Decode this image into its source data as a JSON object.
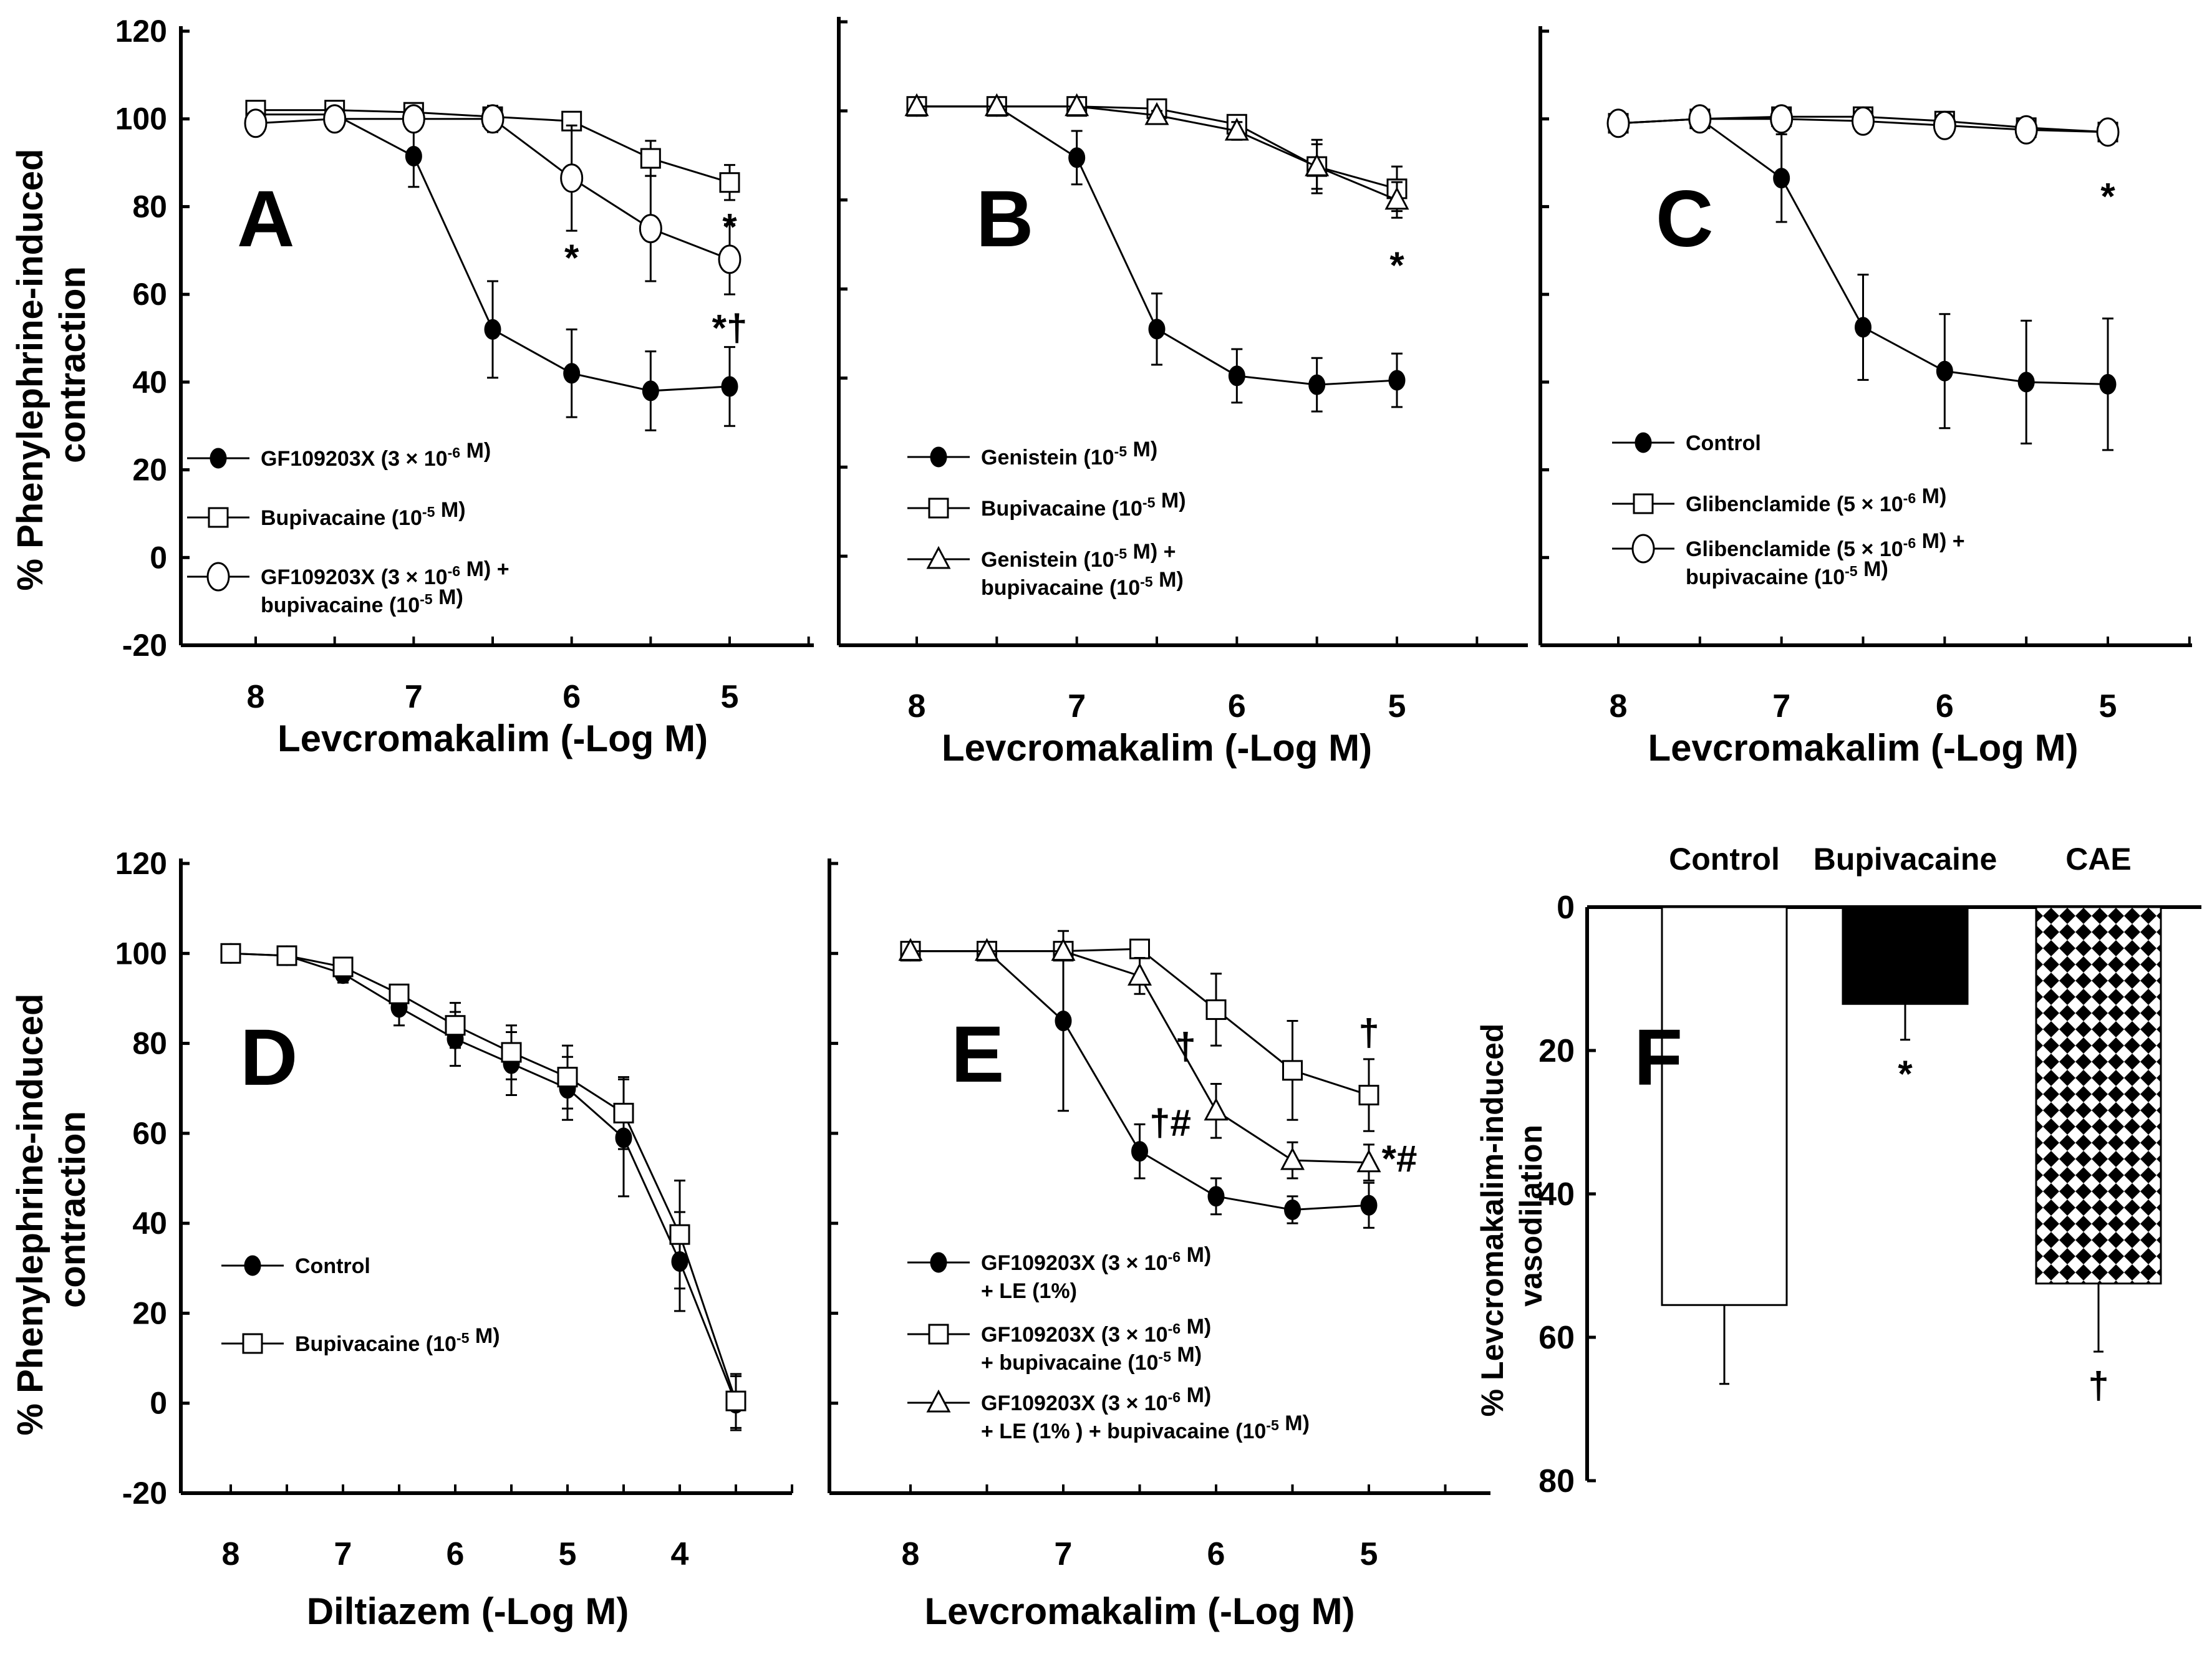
{
  "figure": {
    "y_axis_label_top": "% Phenylephrine-induced contraction",
    "y_axis_label_top_lines": [
      "% Phenylephrine-induced",
      "contraction"
    ],
    "y_axis_label_f_lines": [
      "% Levcromakalim-induced",
      "vasodilation"
    ]
  },
  "chart_data": [
    {
      "panel": "A",
      "type": "line",
      "xlabel": "Levcromakalim (-Log M)",
      "ylabel": "% Phenylephrine-induced contraction",
      "xlim": [
        8.5,
        4.5
      ],
      "ylim": [
        -20,
        120
      ],
      "xticks": [
        8,
        7,
        6,
        5
      ],
      "yticks": [
        -20,
        0,
        20,
        40,
        60,
        80,
        100,
        120
      ],
      "ytick_labels_visible": true,
      "x": [
        8,
        7.5,
        7,
        6.5,
        6,
        5.5,
        5
      ],
      "series": [
        {
          "name": "GF109203X (3 × 10-6 M)",
          "marker": "filled-circle",
          "values": [
            101,
            101,
            91.5,
            52,
            42,
            38,
            39
          ],
          "errors": [
            0,
            0,
            7,
            11,
            10,
            9,
            9
          ]
        },
        {
          "name": "Bupivacaine (10-5 M)",
          "marker": "open-square",
          "values": [
            102,
            102,
            101.5,
            100.5,
            99.5,
            91,
            85.5
          ],
          "errors": [
            0,
            0,
            0,
            2,
            2,
            4,
            4
          ]
        },
        {
          "name": "GF109203X (3 × 10-6 M) + bupivacaine (10-5 M)",
          "marker": "open-circle",
          "values": [
            99,
            100,
            100,
            100,
            86.5,
            75,
            68
          ],
          "errors": [
            0,
            0,
            0,
            3,
            12,
            12,
            8
          ]
        }
      ],
      "legend": [
        {
          "marker": "filled-circle",
          "lines": [
            "GF109203X  (3 × 10-6 M)"
          ]
        },
        {
          "marker": "open-square",
          "lines": [
            "Bupivacaine  (10-5 M)"
          ]
        },
        {
          "marker": "open-circle",
          "lines": [
            "GF109203X  (3  × 10-6 M) +",
            "bupivacaine  (10-5 M)"
          ]
        }
      ],
      "annotations": [
        {
          "text": "A",
          "role": "panel-letter"
        },
        {
          "text": "*",
          "x": 6,
          "y": 68
        },
        {
          "text": "*",
          "x": 5,
          "y": 75
        },
        {
          "text": "*†",
          "x": 5,
          "y": 52
        }
      ]
    },
    {
      "panel": "B",
      "type": "line",
      "xlabel": "Levcromakalim (-Log M)",
      "ylabel": "",
      "xlim": [
        8.5,
        4.5
      ],
      "ylim": [
        -20,
        120
      ],
      "xticks": [
        8,
        7,
        6,
        5
      ],
      "yticks": [
        -20,
        0,
        20,
        40,
        60,
        80,
        100,
        120
      ],
      "ytick_labels_visible": false,
      "x": [
        8,
        7.5,
        7,
        6.5,
        6,
        5.5,
        5
      ],
      "series": [
        {
          "name": "Genistein (10-5 M)",
          "marker": "filled-circle",
          "values": [
            101,
            101,
            89.5,
            51,
            40.5,
            38.5,
            39.5
          ],
          "errors": [
            0,
            0,
            6,
            8,
            6,
            6,
            6
          ]
        },
        {
          "name": "Bupivacaine (10-5 M)",
          "marker": "open-square",
          "values": [
            101,
            101,
            101,
            100.5,
            97,
            87.5,
            82.5
          ],
          "errors": [
            0,
            0,
            0,
            1,
            2,
            5,
            5
          ]
        },
        {
          "name": "Genistein (10-5 M) + bupivacaine (10-5 M)",
          "marker": "open-triangle",
          "values": [
            101,
            101,
            101,
            99,
            95.5,
            87.5,
            80
          ],
          "errors": [
            0,
            0,
            0,
            1,
            2,
            6,
            4
          ]
        }
      ],
      "legend": [
        {
          "marker": "filled-circle",
          "lines": [
            "Genistein  (10-5 M)"
          ]
        },
        {
          "marker": "open-square",
          "lines": [
            "Bupivacaine  (10-5 M)"
          ]
        },
        {
          "marker": "open-triangle",
          "lines": [
            "Genistein  (10-5 M) +",
            "bupivacaine  (10-5 M)"
          ]
        }
      ],
      "annotations": [
        {
          "text": "B",
          "role": "panel-letter"
        },
        {
          "text": "*",
          "x": 5,
          "y": 65
        }
      ]
    },
    {
      "panel": "C",
      "type": "line",
      "xlabel": "Levcromakalim (-Log M)",
      "ylabel": "",
      "xlim": [
        8.5,
        4.5
      ],
      "ylim": [
        -20,
        120
      ],
      "xticks": [
        8,
        7,
        6,
        5
      ],
      "yticks": [
        -20,
        0,
        20,
        40,
        60,
        80,
        100,
        120
      ],
      "ytick_labels_visible": false,
      "x": [
        8,
        7.5,
        7,
        6.5,
        6,
        5.5,
        5
      ],
      "series": [
        {
          "name": "Control",
          "marker": "filled-circle",
          "values": [
            99,
            100,
            86.5,
            52.5,
            42.5,
            40,
            39.5
          ],
          "errors": [
            0,
            0,
            10,
            12,
            13,
            14,
            15
          ]
        },
        {
          "name": "Glibenclamide (5 × 10-6 M)",
          "marker": "open-square",
          "values": [
            99,
            100,
            100.5,
            100.5,
            99.5,
            98,
            97
          ],
          "errors": [
            0,
            0,
            0,
            0,
            1,
            2,
            2
          ]
        },
        {
          "name": "Glibenclamide (5 × 10-6 M) + bupivacaine (10-5 M)",
          "marker": "open-circle",
          "values": [
            99,
            100,
            100,
            99.5,
            98.5,
            97.5,
            97
          ],
          "errors": [
            0,
            0,
            0,
            0,
            1,
            2,
            2
          ]
        }
      ],
      "legend": [
        {
          "marker": "filled-circle",
          "lines": [
            "Control"
          ]
        },
        {
          "marker": "open-square",
          "lines": [
            "Glibenclamide   (5 × 10-6 M)"
          ]
        },
        {
          "marker": "open-circle",
          "lines": [
            "Glibenclamide   (5 × 10-6 M)   +",
            "bupivacaine  (10-5 M)"
          ]
        }
      ],
      "annotations": [
        {
          "text": "C",
          "role": "panel-letter"
        },
        {
          "text": "*",
          "x": 5,
          "y": 82
        }
      ]
    },
    {
      "panel": "D",
      "type": "line",
      "xlabel": "Diltiazem (-Log M)",
      "ylabel": "% Phenylephrine-induced contraction",
      "xlim": [
        8.5,
        3
      ],
      "ylim": [
        -20,
        120
      ],
      "xticks": [
        8,
        7,
        6,
        5,
        4
      ],
      "yticks": [
        -20,
        0,
        20,
        40,
        60,
        80,
        100,
        120
      ],
      "ytick_labels_visible": true,
      "x": [
        8,
        7.5,
        7,
        6.5,
        6,
        5.5,
        5,
        4.5,
        4,
        3.5
      ],
      "series": [
        {
          "name": "Control",
          "marker": "filled-circle",
          "values": [
            100,
            99.5,
            95.5,
            88,
            81,
            75.5,
            70,
            59,
            31.5,
            0
          ],
          "errors": [
            0,
            0,
            2,
            4,
            6,
            7,
            7,
            13,
            11,
            6
          ]
        },
        {
          "name": "Bupivacaine (10-5 M)",
          "marker": "open-square",
          "values": [
            100,
            99.5,
            97,
            91,
            84,
            78,
            72.5,
            64.5,
            37.5,
            0.5
          ],
          "errors": [
            0,
            0,
            2,
            2,
            5,
            6,
            7,
            8,
            12,
            6
          ]
        }
      ],
      "legend": [
        {
          "marker": "filled-circle",
          "lines": [
            "Control"
          ]
        },
        {
          "marker": "open-square",
          "lines": [
            "Bupivacaine  (10-5 M)"
          ]
        }
      ],
      "annotations": [
        {
          "text": "D",
          "role": "panel-letter"
        }
      ]
    },
    {
      "panel": "E",
      "type": "line",
      "xlabel": "Levcromakalim (-Log M)",
      "ylabel": "",
      "xlim": [
        8.5,
        4.5
      ],
      "ylim": [
        -20,
        120
      ],
      "xticks": [
        8,
        7,
        6,
        5
      ],
      "yticks": [
        -20,
        0,
        20,
        40,
        60,
        80,
        100,
        120
      ],
      "ytick_labels_visible": false,
      "x": [
        8,
        7.5,
        7,
        6.5,
        6,
        5.5,
        5
      ],
      "series": [
        {
          "name": "GF109203X (3 × 10-6 M) + LE (1%)",
          "marker": "filled-circle",
          "values": [
            100.5,
            100.5,
            85,
            56,
            46,
            43,
            44
          ],
          "errors": [
            0,
            0,
            20,
            6,
            4,
            3,
            5
          ]
        },
        {
          "name": "GF109203X (3 × 10-6 M) + bupivacaine (10-5 M)",
          "marker": "open-square",
          "values": [
            100.5,
            100.5,
            100.5,
            101,
            87.5,
            74,
            68.5
          ],
          "errors": [
            0,
            0,
            0,
            1,
            8,
            11,
            8
          ]
        },
        {
          "name": "GF109203X (3 × 10-6 M) + LE (1%) + bupivacaine (10-5 M)",
          "marker": "open-triangle",
          "values": [
            100.5,
            100.5,
            100.5,
            95,
            65,
            54,
            53.5
          ],
          "errors": [
            0,
            0,
            0,
            4,
            6,
            4,
            4
          ]
        }
      ],
      "legend": [
        {
          "marker": "filled-circle",
          "lines": [
            "GF109203X  (3 × 10-6 M)",
            "+ LE (1%)"
          ]
        },
        {
          "marker": "open-square",
          "lines": [
            "GF109203X  (3 × 10-6 M)",
            "+ bupivacaine  (10-5 M)"
          ]
        },
        {
          "marker": "open-triangle",
          "lines": [
            "GF109203X  (3 × 10-6 M)",
            "+ LE (1% ) + bupivacaine  (10-5 M)"
          ]
        }
      ],
      "annotations": [
        {
          "text": "E",
          "role": "panel-letter"
        },
        {
          "text": "†",
          "x": 6.2,
          "y": 79
        },
        {
          "text": "†#",
          "x": 6.3,
          "y": 62
        },
        {
          "text": "†",
          "x": 5,
          "y": 82
        },
        {
          "text": "*#",
          "x": 4.8,
          "y": 54
        }
      ]
    },
    {
      "panel": "F",
      "type": "bar",
      "categories": [
        "Control",
        "Bupivacaine",
        "CAE"
      ],
      "values": [
        55.5,
        13.5,
        52.5
      ],
      "errors": [
        11,
        5,
        9.5
      ],
      "fills": [
        "white",
        "black",
        "checker"
      ],
      "ylabel": "% Levcromakalim-induced vasodilation",
      "ylim": [
        0,
        80
      ],
      "yticks": [
        0,
        20,
        40,
        60,
        80
      ],
      "inverted": true,
      "annotations": [
        {
          "text": "F",
          "role": "panel-letter"
        },
        {
          "text": "*",
          "category": "Bupivacaine"
        },
        {
          "text": "†",
          "category": "CAE"
        }
      ]
    }
  ]
}
